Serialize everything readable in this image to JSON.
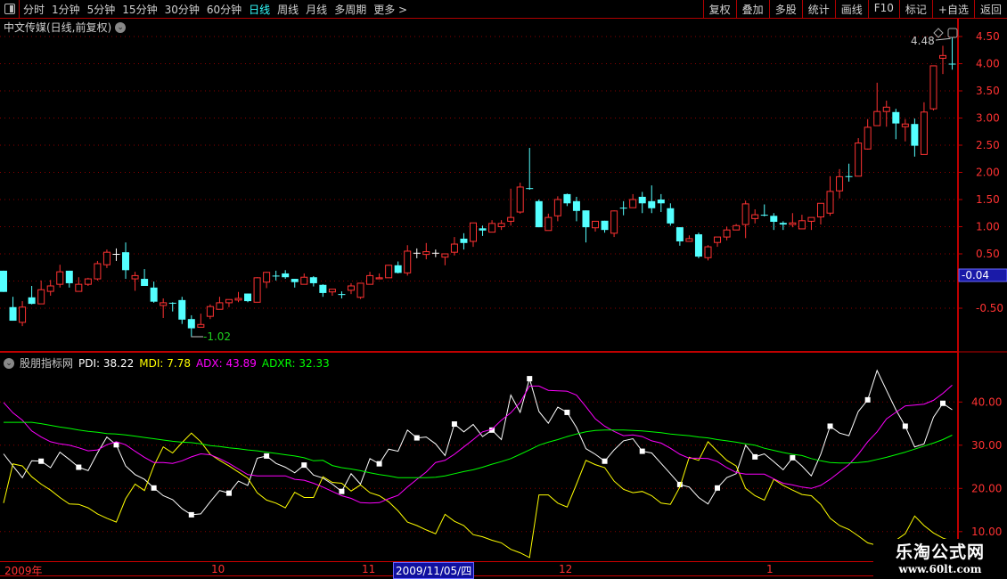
{
  "toolbar": {
    "tabs": [
      "分时",
      "1分钟",
      "5分钟",
      "15分钟",
      "30分钟",
      "60分钟",
      "日线",
      "周线",
      "月线",
      "多周期",
      "更多 >"
    ],
    "active_tab": "日线",
    "right_buttons": [
      "复权",
      "叠加",
      "多股",
      "统计",
      "画线",
      "F10",
      "标记",
      "+自选",
      "返回"
    ]
  },
  "chart_title": "中文传媒(日线,前复权)",
  "indicator": {
    "name": "股朋指标网",
    "values": [
      {
        "label": "PDI: 38.22",
        "color": "#ffffff"
      },
      {
        "label": "MDI: 7.78",
        "color": "#ffff00"
      },
      {
        "label": "ADX: 43.89",
        "color": "#ff00ff"
      },
      {
        "label": "ADXR: 32.33",
        "color": "#00ff00"
      }
    ]
  },
  "time_axis": {
    "labels": [
      "2009年",
      "10",
      "11",
      "12",
      "1"
    ],
    "cursor_date": "2009/11/05/四"
  },
  "watermark": {
    "name": "乐淘公式网",
    "url": "www.60lt.com"
  },
  "colors": {
    "up": "#ff3232",
    "down": "#54ffff",
    "doji": "#ffffff",
    "grid": "#8b0000",
    "axis": "#c00000"
  },
  "chart_data": [
    {
      "type": "candlestick",
      "price_axis_ticks": [
        "4.50",
        "4.00",
        "3.50",
        "3.00",
        "2.50",
        "2.00",
        "1.50",
        "1.00",
        "0.50",
        "-0.50"
      ],
      "cursor_value": "-0.04",
      "max_label": "4.48",
      "min_label": "-1.02",
      "ylim": [
        -1.1,
        4.7
      ],
      "grid": true,
      "candles_ohlc": [
        [
          0.19,
          0.19,
          -0.2,
          -0.2
        ],
        [
          -0.48,
          -0.29,
          -0.73,
          -0.73
        ],
        [
          -0.76,
          -0.37,
          -0.83,
          -0.48
        ],
        [
          -0.3,
          -0.09,
          -0.43,
          -0.42
        ],
        [
          -0.42,
          0.01,
          -0.42,
          -0.16
        ],
        [
          -0.19,
          0.02,
          -0.27,
          -0.09
        ],
        [
          -0.06,
          0.3,
          -0.12,
          0.17
        ],
        [
          0.19,
          0.19,
          -0.12,
          -0.04
        ],
        [
          -0.19,
          0.07,
          -0.19,
          -0.06
        ],
        [
          -0.06,
          0.06,
          -0.09,
          0.04
        ],
        [
          0.04,
          0.37,
          0.01,
          0.32
        ],
        [
          0.3,
          0.58,
          0.24,
          0.53
        ],
        [
          0.5,
          0.6,
          0.37,
          0.5
        ],
        [
          0.53,
          0.71,
          0.04,
          0.2
        ],
        [
          0.04,
          0.17,
          -0.18,
          0.1
        ],
        [
          0.04,
          0.22,
          -0.09,
          -0.09
        ],
        [
          -0.12,
          -0.01,
          -0.4,
          -0.38
        ],
        [
          -0.45,
          -0.32,
          -0.68,
          -0.4
        ],
        [
          -0.4,
          -0.39,
          -0.56,
          -0.41
        ],
        [
          -0.35,
          -0.29,
          -0.79,
          -0.71
        ],
        [
          -0.7,
          -0.63,
          -1.02,
          -0.87
        ],
        [
          -0.85,
          -0.6,
          -0.85,
          -0.8
        ],
        [
          -0.65,
          -0.43,
          -0.7,
          -0.47
        ],
        [
          -0.52,
          -0.29,
          -0.52,
          -0.4
        ],
        [
          -0.4,
          -0.34,
          -0.48,
          -0.34
        ],
        [
          -0.35,
          -0.2,
          -0.39,
          -0.32
        ],
        [
          -0.23,
          -0.23,
          -0.39,
          -0.37
        ],
        [
          -0.39,
          0.07,
          -0.39,
          0.06
        ],
        [
          -0.02,
          0.17,
          -0.13,
          0.16
        ],
        [
          0.1,
          0.19,
          0.01,
          0.09
        ],
        [
          0.14,
          0.2,
          0.04,
          0.07
        ],
        [
          0.04,
          0.04,
          -0.12,
          -0.02
        ],
        [
          -0.06,
          0.14,
          -0.06,
          0.07
        ],
        [
          0.07,
          0.09,
          -0.1,
          -0.04
        ],
        [
          -0.07,
          -0.06,
          -0.29,
          -0.22
        ],
        [
          -0.2,
          -0.15,
          -0.27,
          -0.15
        ],
        [
          -0.24,
          -0.19,
          -0.32,
          -0.25
        ],
        [
          -0.17,
          -0.04,
          -0.24,
          -0.09
        ],
        [
          -0.3,
          -0.04,
          -0.33,
          -0.04
        ],
        [
          -0.06,
          0.17,
          -0.06,
          0.1
        ],
        [
          0.04,
          0.14,
          0.04,
          0.06
        ],
        [
          0.06,
          0.3,
          0.06,
          0.29
        ],
        [
          0.29,
          0.36,
          0.14,
          0.15
        ],
        [
          0.15,
          0.66,
          0.1,
          0.55
        ],
        [
          0.52,
          0.6,
          0.42,
          0.52
        ],
        [
          0.49,
          0.7,
          0.4,
          0.54
        ],
        [
          0.52,
          0.58,
          0.44,
          0.52
        ],
        [
          0.44,
          0.5,
          0.29,
          0.5
        ],
        [
          0.53,
          0.81,
          0.47,
          0.68
        ],
        [
          0.78,
          0.88,
          0.58,
          0.7
        ],
        [
          0.73,
          1.07,
          0.63,
          1.07
        ],
        [
          0.97,
          1.02,
          0.83,
          0.93
        ],
        [
          0.9,
          1.12,
          0.9,
          1.06
        ],
        [
          1.0,
          1.12,
          0.94,
          1.06
        ],
        [
          1.1,
          1.7,
          1.02,
          1.17
        ],
        [
          1.27,
          1.81,
          1.24,
          1.73
        ],
        [
          1.71,
          2.45,
          1.68,
          1.7
        ],
        [
          1.47,
          1.5,
          0.99,
          0.99
        ],
        [
          0.93,
          1.24,
          0.93,
          1.17
        ],
        [
          1.2,
          1.56,
          1.1,
          1.5
        ],
        [
          1.6,
          1.61,
          1.38,
          1.43
        ],
        [
          1.47,
          1.55,
          1.1,
          1.29
        ],
        [
          1.3,
          1.3,
          0.71,
          0.99
        ],
        [
          0.98,
          1.1,
          0.91,
          1.1
        ],
        [
          1.11,
          1.11,
          0.89,
          0.94
        ],
        [
          0.88,
          1.3,
          0.81,
          1.29
        ],
        [
          1.35,
          1.47,
          1.21,
          1.34
        ],
        [
          1.35,
          1.6,
          1.35,
          1.5
        ],
        [
          1.55,
          1.64,
          1.25,
          1.43
        ],
        [
          1.47,
          1.76,
          1.25,
          1.34
        ],
        [
          1.5,
          1.6,
          1.27,
          1.43
        ],
        [
          1.34,
          1.43,
          1.02,
          1.06
        ],
        [
          0.99,
          0.99,
          0.65,
          0.73
        ],
        [
          0.73,
          0.84,
          0.73,
          0.78
        ],
        [
          0.86,
          0.89,
          0.42,
          0.45
        ],
        [
          0.43,
          0.66,
          0.38,
          0.63
        ],
        [
          0.71,
          0.81,
          0.63,
          0.81
        ],
        [
          0.81,
          1.0,
          0.75,
          0.94
        ],
        [
          0.94,
          1.05,
          0.94,
          1.02
        ],
        [
          1.04,
          1.48,
          0.79,
          1.42
        ],
        [
          1.15,
          1.32,
          1.06,
          1.22
        ],
        [
          1.22,
          1.41,
          1.19,
          1.21
        ],
        [
          1.2,
          1.25,
          0.94,
          1.09
        ],
        [
          1.07,
          1.1,
          0.94,
          1.04
        ],
        [
          1.04,
          1.25,
          0.99,
          1.07
        ],
        [
          0.96,
          1.22,
          0.96,
          1.11
        ],
        [
          1.1,
          1.17,
          0.94,
          1.17
        ],
        [
          1.18,
          1.43,
          1.04,
          1.43
        ],
        [
          1.25,
          1.93,
          1.2,
          1.65
        ],
        [
          1.66,
          2.06,
          1.52,
          1.92
        ],
        [
          1.93,
          2.16,
          1.83,
          1.92
        ],
        [
          1.93,
          2.63,
          1.93,
          2.54
        ],
        [
          2.43,
          2.98,
          2.42,
          2.83
        ],
        [
          2.86,
          3.65,
          2.86,
          3.12
        ],
        [
          3.12,
          3.32,
          2.84,
          3.2
        ],
        [
          3.11,
          3.17,
          2.61,
          2.9
        ],
        [
          2.84,
          2.98,
          2.57,
          2.89
        ],
        [
          2.89,
          2.99,
          2.29,
          2.49
        ],
        [
          2.33,
          3.29,
          2.33,
          3.11
        ],
        [
          3.17,
          3.96,
          3.14,
          3.96
        ],
        [
          4.1,
          4.33,
          3.81,
          4.15
        ],
        [
          4.0,
          4.48,
          3.89,
          3.99
        ]
      ]
    },
    {
      "type": "line",
      "axis_ticks": [
        "40.00",
        "30.00",
        "20.00",
        "10.00"
      ],
      "ylim": [
        3,
        48
      ],
      "grid": true,
      "series": [
        {
          "name": "PDI",
          "color": "#ffffff",
          "values": [
            28.0,
            25.2,
            22.5,
            26.4,
            26.3,
            24.8,
            28.4,
            26.7,
            24.9,
            24.1,
            28.2,
            31.9,
            30.1,
            25.2,
            23.2,
            22.1,
            20.1,
            18.3,
            17.4,
            15.3,
            13.9,
            14.1,
            16.9,
            19.5,
            18.9,
            21.7,
            20.7,
            27.0,
            27.5,
            25.8,
            24.9,
            23.6,
            25.4,
            23.1,
            22.4,
            21.0,
            19.3,
            23.4,
            21.0,
            26.9,
            25.7,
            29.1,
            28.6,
            33.5,
            31.7,
            31.9,
            30.3,
            27.6,
            34.9,
            33.1,
            34.8,
            32.0,
            33.5,
            31.3,
            41.6,
            37.6,
            45.4,
            37.8,
            35.1,
            38.8,
            37.6,
            34.1,
            29.2,
            27.9,
            26.3,
            28.9,
            31.0,
            31.5,
            28.6,
            28.2,
            25.8,
            23.4,
            20.9,
            20.3,
            17.9,
            16.4,
            20.1,
            22.5,
            23.4,
            30.0,
            27.3,
            28.0,
            26.2,
            24.3,
            27.1,
            25.2,
            22.9,
            27.9,
            34.4,
            32.8,
            32.2,
            37.8,
            40.5,
            47.3,
            42.7,
            38.2,
            34.4,
            29.6,
            30.3,
            36.5,
            39.7,
            38.2
          ]
        },
        {
          "name": "MDI",
          "color": "#ffff00",
          "values": [
            16.6,
            25.7,
            25.2,
            22.7,
            21.0,
            19.6,
            17.9,
            16.4,
            16.3,
            15.5,
            14.1,
            13.1,
            12.2,
            17.6,
            21.0,
            19.5,
            25.2,
            29.6,
            28.2,
            30.6,
            32.8,
            30.8,
            27.9,
            26.5,
            25.2,
            23.8,
            22.4,
            19.0,
            17.3,
            16.6,
            15.5,
            19.1,
            17.9,
            17.9,
            22.7,
            21.4,
            21.2,
            19.4,
            20.8,
            19.0,
            18.3,
            16.9,
            14.8,
            12.2,
            11.4,
            10.4,
            9.5,
            14.0,
            12.4,
            11.4,
            9.3,
            8.8,
            8.0,
            7.4,
            5.9,
            5.1,
            4.0,
            18.5,
            18.5,
            16.6,
            15.7,
            21.0,
            26.5,
            25.5,
            24.8,
            21.7,
            19.8,
            19.0,
            19.3,
            18.3,
            16.6,
            16.3,
            20.3,
            27.2,
            26.5,
            30.8,
            28.6,
            26.5,
            25.2,
            20.0,
            18.3,
            17.3,
            22.1,
            20.7,
            19.6,
            18.6,
            18.3,
            16.3,
            13.1,
            11.4,
            10.5,
            9.0,
            7.4,
            6.8,
            6.5,
            8.0,
            9.5,
            13.6,
            11.4,
            9.7,
            8.5,
            7.78
          ]
        },
        {
          "name": "ADX",
          "color": "#ff00ff",
          "values": [
            39.9,
            37.5,
            35.8,
            33.3,
            31.9,
            30.8,
            30.3,
            30.0,
            29.4,
            28.7,
            28.9,
            30.1,
            30.8,
            30.1,
            28.6,
            27.2,
            26.0,
            26.0,
            25.8,
            26.4,
            27.3,
            28.0,
            27.8,
            26.9,
            25.8,
            24.5,
            23.2,
            22.9,
            22.9,
            22.9,
            22.9,
            22.1,
            21.9,
            21.2,
            20.3,
            19.3,
            18.3,
            17.7,
            16.7,
            16.6,
            16.7,
            17.6,
            18.4,
            20.3,
            22.1,
            23.8,
            26.0,
            26.5,
            27.9,
            29.6,
            31.3,
            33.1,
            33.7,
            35.8,
            37.5,
            39.9,
            43.7,
            43.7,
            42.7,
            42.6,
            42.5,
            41.6,
            38.9,
            36.1,
            34.4,
            33.2,
            32.2,
            32.4,
            32.0,
            31.0,
            30.5,
            29.3,
            27.9,
            27.0,
            27.0,
            26.9,
            26.2,
            24.8,
            23.7,
            23.3,
            23.3,
            23.3,
            22.2,
            21.2,
            20.8,
            20.3,
            20.0,
            20.7,
            22.1,
            23.8,
            25.5,
            27.9,
            30.8,
            33.1,
            36.1,
            37.6,
            39.1,
            39.3,
            39.5,
            40.4,
            42.0,
            43.89
          ]
        },
        {
          "name": "ADXR",
          "color": "#00ff00",
          "values": [
            35.3,
            35.3,
            35.3,
            35.3,
            35.0,
            34.6,
            34.2,
            33.9,
            33.5,
            33.2,
            33.0,
            32.7,
            32.6,
            32.4,
            32.1,
            31.8,
            31.5,
            31.2,
            30.9,
            30.7,
            30.6,
            30.3,
            29.9,
            29.7,
            29.4,
            29.2,
            28.9,
            28.7,
            28.4,
            28.1,
            27.8,
            27.5,
            27.1,
            26.4,
            26.5,
            25.3,
            24.8,
            24.5,
            24.1,
            23.6,
            23.2,
            22.9,
            22.5,
            22.5,
            22.5,
            22.5,
            22.6,
            22.9,
            23.4,
            23.9,
            24.3,
            24.9,
            25.6,
            26.2,
            26.9,
            27.9,
            28.9,
            30.0,
            30.7,
            31.3,
            32.0,
            32.6,
            33.1,
            33.4,
            33.5,
            33.5,
            33.5,
            33.4,
            33.3,
            33.1,
            32.9,
            32.6,
            32.4,
            32.2,
            31.9,
            31.7,
            31.3,
            31.0,
            30.7,
            30.3,
            30.0,
            29.3,
            28.8,
            28.3,
            27.9,
            27.6,
            26.9,
            26.4,
            26.0,
            25.9,
            25.9,
            26.0,
            26.2,
            26.7,
            27.2,
            27.8,
            28.4,
            29.1,
            29.8,
            30.5,
            31.3,
            32.33
          ]
        }
      ]
    }
  ]
}
